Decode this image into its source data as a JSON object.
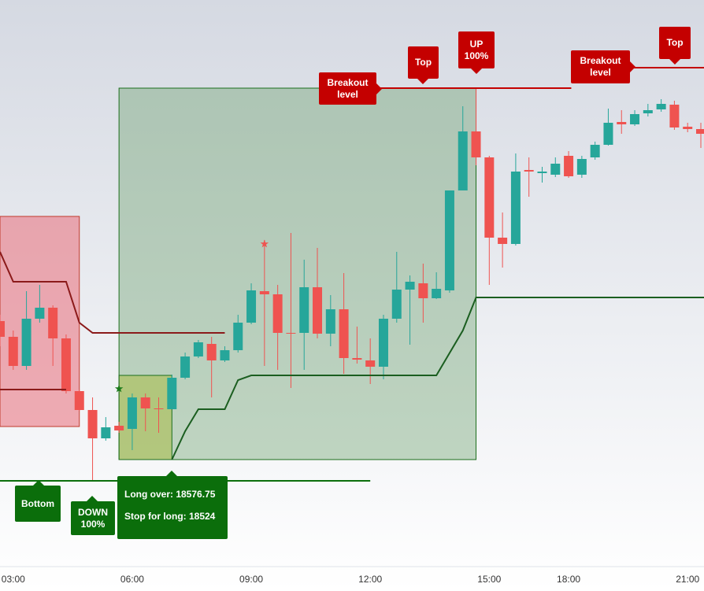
{
  "chart_data": {
    "type": "candlestick",
    "categories": [
      null,
      "03:00",
      null,
      null,
      null,
      null,
      null,
      null,
      null,
      null,
      "06:00",
      null,
      null,
      null,
      null,
      null,
      null,
      null,
      null,
      "09:00",
      null,
      null,
      null,
      null,
      null,
      null,
      null,
      null,
      "12:00",
      null,
      null,
      null,
      null,
      null,
      null,
      null,
      null,
      "15:00",
      null,
      null,
      null,
      null,
      null,
      "18:00",
      null,
      null,
      null,
      null,
      null,
      null,
      null,
      null,
      "21:00",
      null
    ],
    "open": [
      18611.25,
      18601.25,
      18582.75,
      18612.75,
      18619.75,
      18600.25,
      18566.75,
      18554.75,
      18536.75,
      18544.75,
      18542.75,
      18562.75,
      18555.75,
      18555.25,
      18575.25,
      18588.75,
      18596.75,
      18586.25,
      18592.75,
      18610.25,
      18630.25,
      18628.25,
      18603.75,
      18603.75,
      18632.75,
      18603.25,
      18618.75,
      18587.75,
      18586.25,
      18582.25,
      18612.75,
      18631.25,
      18635.25,
      18625.75,
      18630.75,
      18694.25,
      18731.75,
      18715.25,
      18664.25,
      18660.25,
      18707.25,
      18705.25,
      18704.25,
      18716.25,
      18704.25,
      18715.25,
      18723.25,
      18737.75,
      18736.25,
      18743.25,
      18745.75,
      18748.75,
      18734.75,
      18733.25
    ],
    "high": [
      18615.25,
      18605.25,
      18630.25,
      18634.25,
      18621.25,
      18602.75,
      18567.75,
      18562.75,
      18550.25,
      18547.25,
      18565.25,
      18565.25,
      18562.75,
      18577.25,
      18591.25,
      18599.25,
      18601.25,
      18595.25,
      18615.25,
      18635.25,
      18662.75,
      18634.25,
      18667.25,
      18650.25,
      18657.75,
      18627.75,
      18641.75,
      18607.75,
      18600.25,
      18615.25,
      18655.25,
      18640.25,
      18647.75,
      18642.25,
      18694.25,
      18747.75,
      18759.25,
      18716.25,
      18680.25,
      18717.75,
      18715.25,
      18709.25,
      18715.25,
      18719.25,
      18716.25,
      18725.25,
      18746.25,
      18745.25,
      18745.25,
      18749.25,
      18752.25,
      18751.25,
      18737.25,
      18737.25
    ],
    "low": [
      18595.25,
      18580.25,
      18580.25,
      18610.25,
      18582.75,
      18565.25,
      18554.25,
      18510.25,
      18535.25,
      18540.25,
      18529.25,
      18541.25,
      18540.25,
      18555.25,
      18574.25,
      18587.75,
      18562.75,
      18585.25,
      18591.25,
      18609.25,
      18582.75,
      18580.25,
      18568.75,
      18580.25,
      18600.25,
      18595.25,
      18577.75,
      18584.25,
      18571.25,
      18574.25,
      18610.25,
      18596.25,
      18610.25,
      18625.25,
      18629.25,
      18694.25,
      18710.25,
      18634.25,
      18645.25,
      18659.25,
      18690.25,
      18699.25,
      18702.75,
      18702.25,
      18702.25,
      18713.75,
      18722.75,
      18730.25,
      18735.25,
      18741.25,
      18744.25,
      18732.75,
      18731.25,
      18721.25
    ],
    "close": [
      18601.25,
      18582.75,
      18612.75,
      18619.75,
      18600.25,
      18566.75,
      18554.75,
      18536.75,
      18543.75,
      18541.75,
      18562.75,
      18555.75,
      18555.25,
      18575.25,
      18588.75,
      18597.75,
      18586.25,
      18592.75,
      18610.25,
      18630.75,
      18628.25,
      18603.75,
      18603.25,
      18632.75,
      18603.25,
      18618.75,
      18587.75,
      18586.75,
      18582.25,
      18612.75,
      18631.25,
      18636.25,
      18625.75,
      18631.75,
      18694.25,
      18731.75,
      18715.25,
      18664.25,
      18660.25,
      18706.25,
      18706.25,
      18706.25,
      18711.25,
      18703.25,
      18714.25,
      18723.25,
      18737.25,
      18736.25,
      18742.75,
      18745.25,
      18749.25,
      18734.25,
      18733.25,
      18730.25
    ],
    "up_color": "#26a69a",
    "down_color": "#ef5350",
    "ylim": [
      18455.25,
      18815.25
    ],
    "boxes": [
      {
        "x": [
          0,
          6
        ],
        "y": [
          18544.25,
          18677.75
        ],
        "fill": "rgba(233,110,122,0.55)",
        "stroke": "#c0392b"
      },
      {
        "x": [
          9,
          36
        ],
        "y": [
          18523.25,
          18759.25
        ],
        "fill": "rgba(90,150,90,0.35)",
        "stroke": "#1b6e1b"
      },
      {
        "x": [
          9,
          13
        ],
        "y": [
          18523.25,
          18576.75
        ],
        "fill": "rgba(170,190,80,0.6)",
        "stroke": "#1b6e1b"
      }
    ],
    "lines": [
      {
        "color": "#c40000",
        "x": [
          28.6,
          43.2
        ],
        "y": [
          18759.25,
          18759.25
        ]
      },
      {
        "color": "#c40000",
        "x": [
          47.9,
          53.25
        ],
        "y": [
          18772.25,
          18772.25
        ]
      },
      {
        "color": "#0b6e0b",
        "x": [
          0,
          28
        ],
        "y": [
          18509.75,
          18509.75
        ]
      },
      {
        "color": "#8b1a1a",
        "x": [
          0,
          1,
          5,
          6,
          7,
          17
        ],
        "y": [
          18655.25,
          18636.25,
          18636.25,
          18610.25,
          18603.75,
          18603.75
        ]
      },
      {
        "color": "#8b1a1a",
        "x": [
          0,
          5
        ],
        "y": [
          18567.75,
          18567.75
        ]
      },
      {
        "color": "#1b5e20",
        "x": [
          13,
          14,
          15,
          17,
          18,
          19,
          33,
          35,
          36,
          53.25
        ],
        "y": [
          18523.25,
          18541.25,
          18555.25,
          18555.25,
          18573.75,
          18576.75,
          18576.75,
          18605.25,
          18626.25,
          18626.25
        ]
      }
    ],
    "signals": [
      {
        "x": 20,
        "price": 18660.25,
        "color": "#ef5350"
      },
      {
        "x": 9,
        "price": 18568.25,
        "color": "#1b7a1b"
      }
    ],
    "annotations": {
      "bottom": "Bottom",
      "down": "DOWN 100%",
      "long_over": "Long over: 18576.75",
      "stop_long": "Stop for long: 18524",
      "breakout_1": "Breakout level",
      "top_1": "Top",
      "up": "UP 100%",
      "breakout_2": "Breakout level",
      "top_2": "Top"
    }
  }
}
